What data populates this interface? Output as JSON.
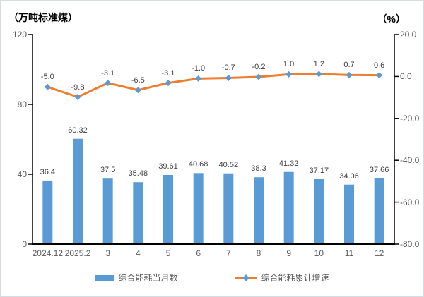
{
  "colors": {
    "bar": "#5b9bd5",
    "line": "#ed7d31",
    "marker": "#5b9bd5",
    "axis": "#000000",
    "tick_label": "#595959",
    "data_label": "#404040",
    "border": "#d5dce4"
  },
  "chart_data": {
    "type": "combo-bar-line",
    "categories": [
      "2024.12",
      "2025.2",
      "3",
      "4",
      "5",
      "6",
      "7",
      "8",
      "9",
      "10",
      "11",
      "12"
    ],
    "series": [
      {
        "name": "综合能耗当月数",
        "type": "bar",
        "axis": "left",
        "values": [
          36.4,
          60.32,
          37.5,
          35.48,
          39.61,
          40.68,
          40.52,
          38.3,
          41.32,
          37.17,
          34.06,
          37.66
        ],
        "labels": [
          "36.4",
          "60.32",
          "37.5",
          "35.48",
          "39.61",
          "40.68",
          "40.52",
          "38.3",
          "41.32",
          "37.17",
          "34.06",
          "37.66"
        ]
      },
      {
        "name": "综合能耗累计增速",
        "type": "line",
        "axis": "right",
        "values": [
          -5.0,
          -9.8,
          -3.1,
          -6.5,
          -3.1,
          -1.0,
          -0.7,
          -0.2,
          1.0,
          1.2,
          0.7,
          0.6
        ],
        "labels": [
          "-5.0",
          "-9.8",
          "-3.1",
          "-6.5",
          "-3.1",
          "-1.0",
          "-0.7",
          "-0.2",
          "1.0",
          "1.2",
          "0.7",
          "0.6"
        ]
      }
    ],
    "left_axis": {
      "title": "（万吨标准煤）",
      "min": 0,
      "max": 120,
      "tick_values": [
        120,
        80,
        40,
        0
      ],
      "tick_labels": [
        "120",
        "80",
        "40",
        "0"
      ]
    },
    "right_axis": {
      "title": "（%）",
      "min": -80,
      "max": 20,
      "tick_values": [
        20,
        0,
        -20,
        -40,
        -60,
        -80
      ],
      "tick_labels": [
        "20.0",
        "0.0",
        "-20.0",
        "-40.0",
        "-60.0",
        "-80.0"
      ]
    },
    "grid": false,
    "legend_position": "bottom"
  }
}
